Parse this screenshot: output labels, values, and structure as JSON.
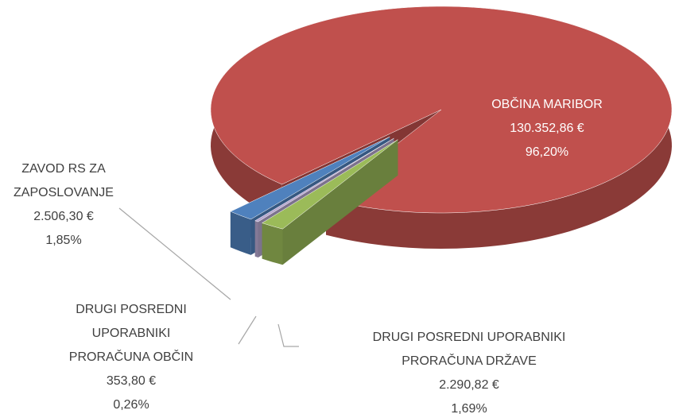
{
  "chart_data": {
    "type": "pie3d",
    "categories": [
      "OBČINA MARIBOR",
      "ZAVOD RS ZA ZAPOSLOVANJE",
      "DRUGI POSREDNI UPORABNIKI PRORAČUNA OBČIN",
      "DRUGI POSREDNI UPORABNIKI PRORAČUNA DRŽAVE"
    ],
    "values": [
      130352.86,
      2506.3,
      353.8,
      2290.82
    ],
    "value_labels": [
      "130.352,86 €",
      "2.506,30 €",
      "353,80 €",
      "2.290,82 €"
    ],
    "percentages": [
      96.2,
      1.85,
      0.26,
      1.69
    ],
    "percentage_labels": [
      "96,20%",
      "1,85%",
      "0,26%",
      "1,69%"
    ],
    "colors": [
      "#c0504d",
      "#4f81bd",
      "#b7a8d0",
      "#9bbb59"
    ]
  }
}
